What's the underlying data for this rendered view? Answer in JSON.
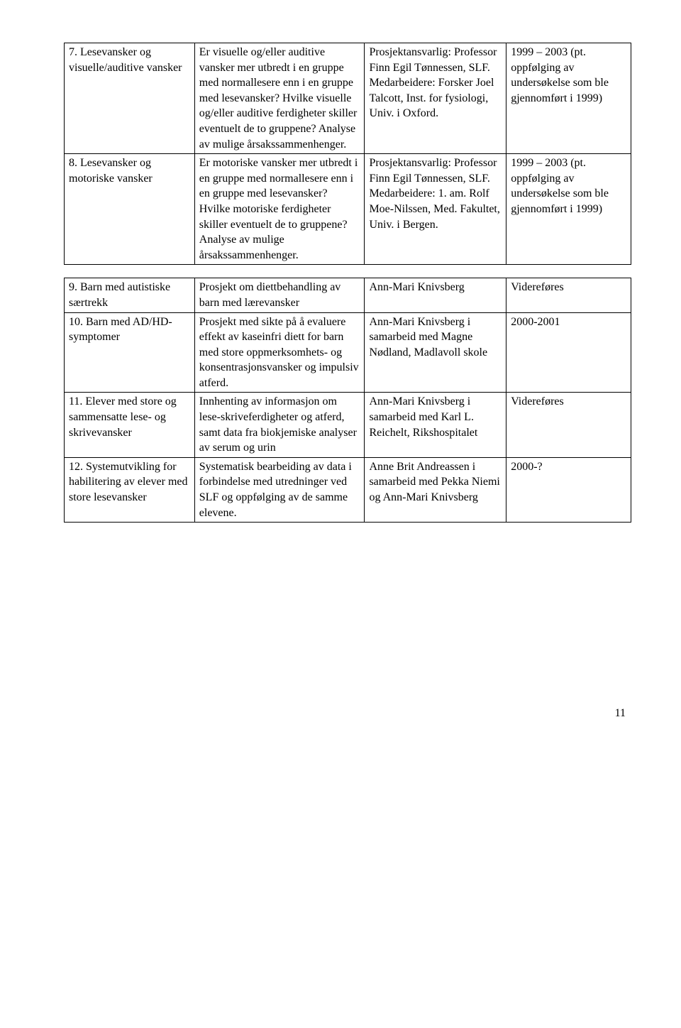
{
  "table1": {
    "rows": [
      {
        "c1": "7. Lesevansker og visuelle/auditive vansker",
        "c2": "Er visuelle og/eller auditive vansker mer utbredt i en gruppe med normallesere enn i en gruppe med lesevansker? Hvilke visuelle og/eller auditive ferdigheter skiller eventuelt de to gruppene? Analyse av mulige årsakssammenhenger.",
        "c3": "Prosjektansvarlig: Professor Finn Egil Tønnessen, SLF. Medarbeidere: Forsker Joel Talcott, Inst. for fysiologi, Univ. i Oxford.",
        "c4": "1999 – 2003 (pt. oppfølging av undersøkelse som ble gjennomført i 1999)"
      },
      {
        "c1": "8. Lesevansker og motoriske vansker",
        "c2": "Er motoriske vansker mer utbredt i en gruppe med normallesere enn i en gruppe med lesevansker? Hvilke motoriske ferdigheter skiller eventuelt de to gruppene? Analyse av mulige årsakssammenhenger.",
        "c3": "Prosjektansvarlig: Professor Finn Egil Tønnessen, SLF. Medarbeidere: 1. am. Rolf Moe-Nilssen, Med. Fakultet, Univ. i Bergen.",
        "c4": "1999 – 2003 (pt. oppfølging av undersøkelse som ble gjennomført i 1999)"
      }
    ]
  },
  "table2": {
    "rows": [
      {
        "c1": "9. Barn med autistiske særtrekk",
        "c2": "Prosjekt om diettbehandling av barn med lærevansker",
        "c3": "Ann-Mari Knivsberg",
        "c4": "Videreføres"
      },
      {
        "c1": "10. Barn med AD/HD-symptomer",
        "c2": "Prosjekt med sikte på å evaluere effekt av kaseinfri diett for barn med store oppmerksomhets- og konsentrasjonsvansker og impulsiv atferd.",
        "c3": "Ann-Mari Knivsberg i samarbeid med Magne Nødland, Madlavoll skole",
        "c4": "2000-2001"
      },
      {
        "c1": "11. Elever med store og sammensatte lese- og skrivevansker",
        "c2": "Innhenting av informasjon om lese-skriveferdigheter og atferd, samt data fra biokjemiske analyser av serum og urin",
        "c3": "Ann-Mari Knivsberg i samarbeid med Karl L. Reichelt, Rikshospitalet",
        "c4": "Videreføres"
      },
      {
        "c1": "12. Systemutvikling for habilitering av elever med store lesevansker",
        "c2": "Systematisk bearbeiding av data i forbindelse med utredninger ved SLF og oppfølging av de samme elevene.",
        "c3": "Anne Brit Andreassen i samarbeid med Pekka Niemi og Ann-Mari Knivsberg",
        "c4": "2000-?"
      }
    ]
  },
  "pagenum": "11"
}
